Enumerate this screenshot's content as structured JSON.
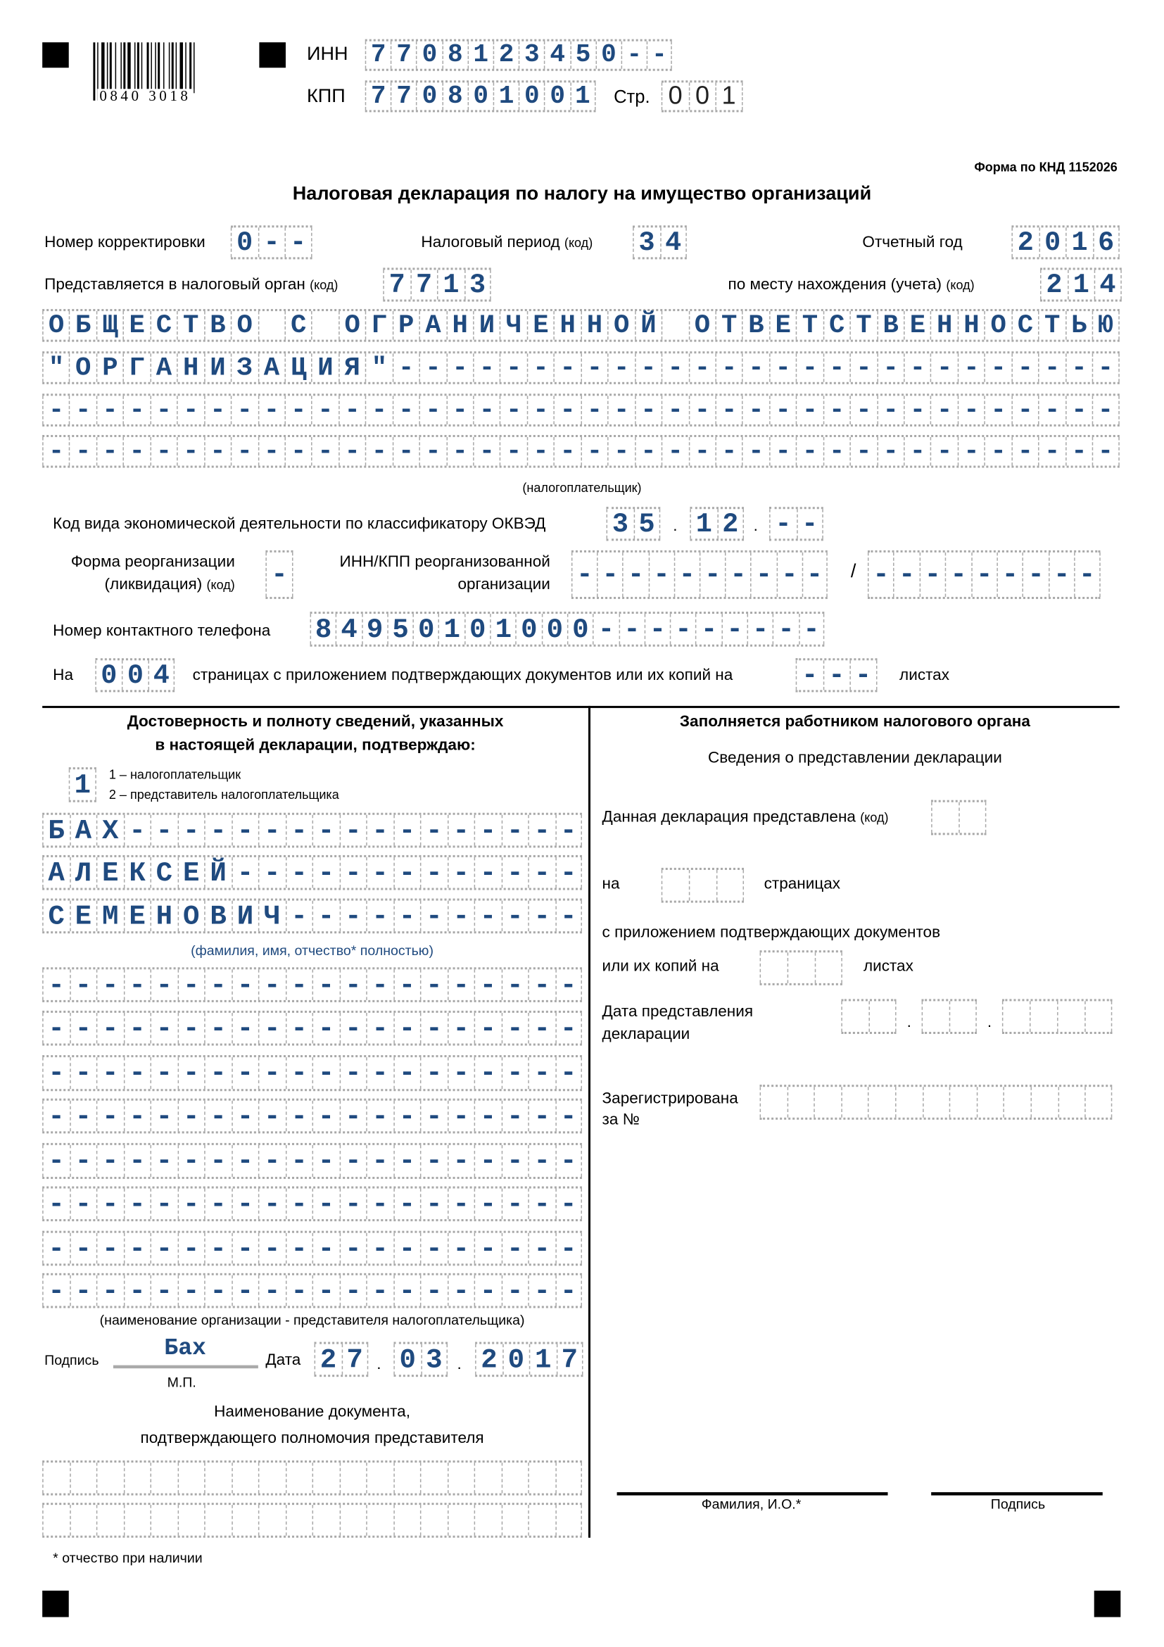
{
  "header": {
    "barcode_number": "0840 3018",
    "inn_label": "ИНН",
    "inn": "7708123450",
    "kpp_label": "КПП",
    "kpp": "770801001",
    "page_label": "Стр.",
    "page": "001",
    "form_code": "Форма по КНД 1152026",
    "title": "Налоговая декларация по налогу на имущество организаций"
  },
  "fields": {
    "correction_label": "Номер корректировки",
    "correction": "0",
    "period_label": "Налоговый период",
    "period_kod": "(код)",
    "period": "34",
    "year_label": "Отчетный год",
    "year": "2016",
    "authority_label": "Представляется в налоговый орган",
    "authority_kod": "(код)",
    "authority": "7713",
    "location_label": "по месту нахождения (учета)",
    "location_kod": "(код)",
    "location": "214",
    "taxpayer_rows": [
      "ОБЩЕСТВО С ОГРАНИЧЕННОЙ ОТВЕТСТВЕННОСТЬЮ",
      "\"ОРГАНИЗАЦИЯ\"",
      "",
      ""
    ],
    "taxpayer_caption": "(налогоплательщик)",
    "okved_label": "Код вида экономической деятельности по классификатору ОКВЭД",
    "okved": [
      "35",
      "12",
      ""
    ],
    "okved_sep": ".",
    "reorg_label_1": "Форма реорганизации",
    "reorg_label_2": "(ликвидация)",
    "reorg_kod": "(код)",
    "reorg_code": "",
    "reorg_inn_label_1": "ИНН/КПП реорганизованной",
    "reorg_inn_label_2": "организации",
    "reorg_inn": "",
    "reorg_slash": "/",
    "reorg_kpp": "",
    "phone_label": "Номер контактного телефона",
    "phone": "84950101000",
    "pages_prefix": "На",
    "pages": "004",
    "pages_text": "страницах с приложением подтверждающих документов или их копий на",
    "sheets": "",
    "sheets_label": "листах"
  },
  "left": {
    "heading_1": "Достоверность и полноту сведений, указанных",
    "heading_2": "в настоящей декларации, подтверждаю:",
    "signer_type": "1",
    "signer_opt_1": "1 – налогоплательщик",
    "signer_opt_2": "2 – представитель налогоплательщика",
    "surname": "БАХ",
    "name": "АЛЕКСЕЙ",
    "patronymic": "СЕМЕНОВИЧ",
    "fio_caption": "(фамилия, имя, отчество* полностью)",
    "org_rows": [
      "",
      "",
      "",
      "",
      "",
      "",
      "",
      ""
    ],
    "org_caption": "(наименование организации - представителя налогоплательщика)",
    "signature_label": "Подпись",
    "signature": "Бах",
    "date_label": "Дата",
    "date": [
      "27",
      "03",
      "2017"
    ],
    "mp": "М.П.",
    "doc_label_1": "Наименование документа,",
    "doc_label_2": "подтверждающего полномочия представителя",
    "doc_rows": [
      "",
      ""
    ],
    "footnote": "* отчество при наличии"
  },
  "right": {
    "heading": "Заполняется работником налогового органа",
    "subheading": "Сведения о представлении декларации",
    "submitted_label": "Данная декларация представлена",
    "submitted_kod": "(код)",
    "on_label": "на",
    "pages_label": "страницах",
    "attach_label": "с приложением подтверждающих документов",
    "copies_label": "или их копий на",
    "sheets_label": "листах",
    "date_label_1": "Дата представления",
    "date_label_2": "декларации",
    "reg_label_1": "Зарегистрирована",
    "reg_label_2": "за №",
    "fio_label": "Фамилия, И.О.*",
    "sign_label": "Подпись"
  },
  "colors": {
    "ink": "#1f4a7f",
    "cell_border": "#a8a8a8"
  }
}
